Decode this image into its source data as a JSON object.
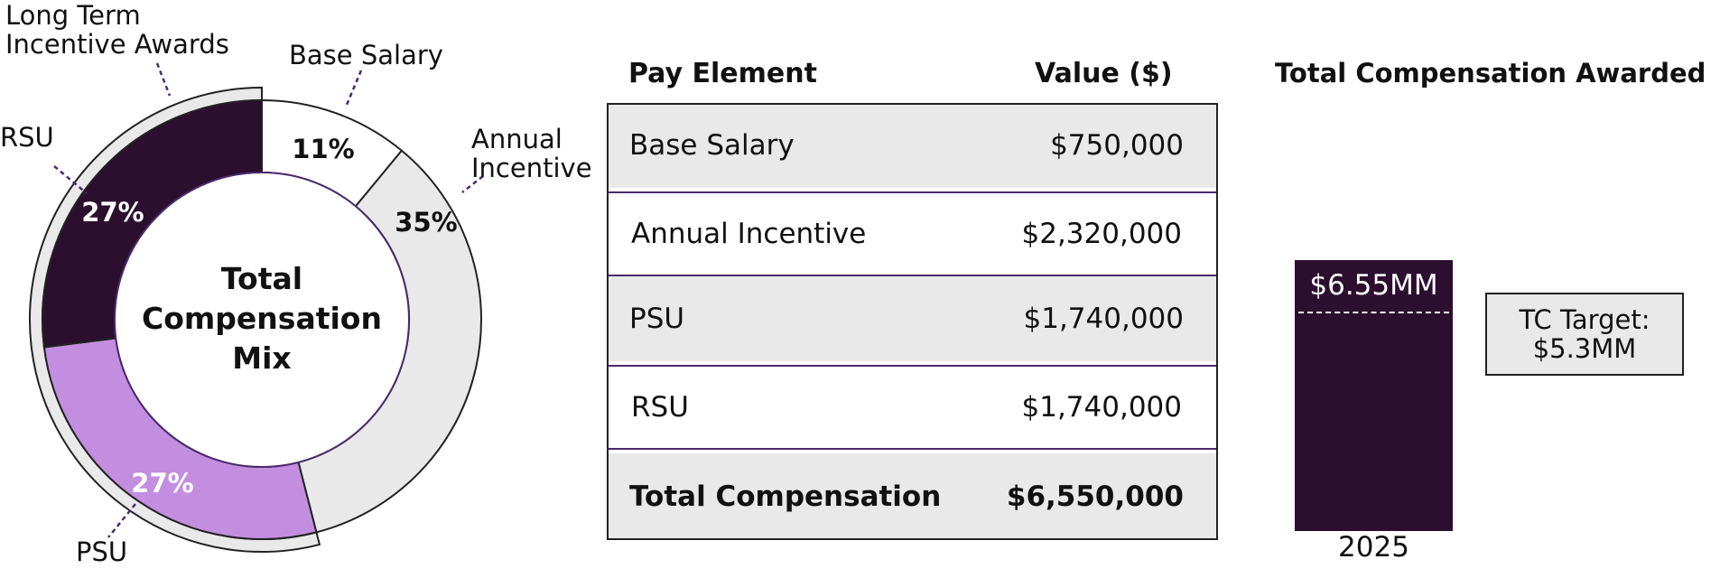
{
  "donut": {
    "center_title": [
      "Total",
      "Compensation",
      "Mix"
    ],
    "outer_arc_label": [
      "Long Term",
      "Incentive Awards"
    ],
    "slices": [
      {
        "name": "Base Salary",
        "pct_label": "11%",
        "color": "#ffffff",
        "text_color": "#111111"
      },
      {
        "name": "Annual Incentive",
        "pct_label": "35%",
        "color": "#e9e9e9",
        "text_color": "#111111"
      },
      {
        "name": "PSU",
        "pct_label": "27%",
        "color": "#c38ee0",
        "text_color": "#ffffff"
      },
      {
        "name": "RSU",
        "pct_label": "27%",
        "color": "#2c0f2e",
        "text_color": "#ffffff"
      }
    ],
    "callouts": {
      "base_salary": "Base Salary",
      "annual_incentive": [
        "Annual",
        "Incentive"
      ],
      "psu": "PSU",
      "rsu": "RSU"
    }
  },
  "table": {
    "headers": {
      "element": "Pay Element",
      "value": "Value ($)"
    },
    "rows": [
      {
        "name": "Base Salary",
        "value": "$750,000",
        "style": "gray"
      },
      {
        "name": "Annual Incentive",
        "value": "$2,320,000",
        "style": "white"
      },
      {
        "name": "PSU",
        "value": "$1,740,000",
        "style": "gray"
      },
      {
        "name": "RSU",
        "value": "$1,740,000",
        "style": "white"
      },
      {
        "name": "Total Compensation",
        "value": "$6,550,000",
        "style": "gray",
        "bold": true
      }
    ]
  },
  "bar": {
    "title": "Total Compensation Awarded",
    "value_label": "$6.55MM",
    "category": "2025",
    "target_label": [
      "TC Target:",
      "$5.3MM"
    ],
    "color": "#2c0f2e"
  },
  "chart_data": [
    {
      "type": "pie",
      "title": "Total Compensation Mix",
      "categories": [
        "Base Salary",
        "Annual Incentive",
        "PSU",
        "RSU"
      ],
      "values": [
        11,
        35,
        27,
        27
      ],
      "group_annotation": {
        "label": "Long Term Incentive Awards",
        "members": [
          "PSU",
          "RSU"
        ]
      }
    },
    {
      "type": "table",
      "columns": [
        "Pay Element",
        "Value ($)"
      ],
      "rows": [
        [
          "Base Salary",
          750000
        ],
        [
          "Annual Incentive",
          2320000
        ],
        [
          "PSU",
          1740000
        ],
        [
          "RSU",
          1740000
        ],
        [
          "Total Compensation",
          6550000
        ]
      ]
    },
    {
      "type": "bar",
      "title": "Total Compensation Awarded",
      "categories": [
        "2025"
      ],
      "values": [
        6.55
      ],
      "target": 5.3,
      "ylim": [
        0,
        8
      ]
    }
  ]
}
